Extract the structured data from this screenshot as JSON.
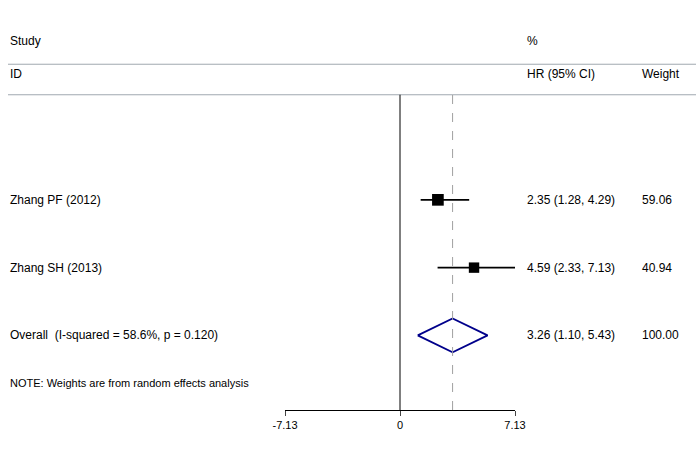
{
  "chart_data": {
    "type": "forest",
    "categories": [
      "Zhang PF (2012)",
      "Zhang SH (2013)",
      "Overall  (I-squared = 58.6%, p = 0.120)"
    ],
    "values": [
      2.35,
      4.59,
      3.26
    ],
    "ci_low": [
      1.28,
      2.33,
      1.1
    ],
    "ci_high": [
      4.29,
      7.13,
      5.43
    ],
    "value_labels": [
      "2.35 (1.28, 4.29)",
      "4.59 (2.33, 7.13)",
      "3.26 (1.10, 5.43)"
    ],
    "weights": [
      59.06,
      40.94,
      100.0
    ],
    "weight_labels": [
      "59.06",
      "40.94",
      "100.00"
    ],
    "headers": [
      [
        "Study",
        "%"
      ],
      [
        "ID",
        "HR (95% CI)",
        "Weight"
      ]
    ],
    "annotations": [
      "NOTE: Weights are from random effects analysis"
    ],
    "colors": [
      "#000000",
      "#000000",
      "#00008B"
    ],
    "null_line": 0,
    "reference_line": {
      "value": 3.26,
      "color": "#A0A0A0",
      "line_style": "dashed"
    },
    "xlim": [
      -7.13,
      7.13
    ],
    "xticks": [
      -7.13,
      0,
      7.13
    ],
    "grid": false,
    "tick_labels": "x"
  }
}
